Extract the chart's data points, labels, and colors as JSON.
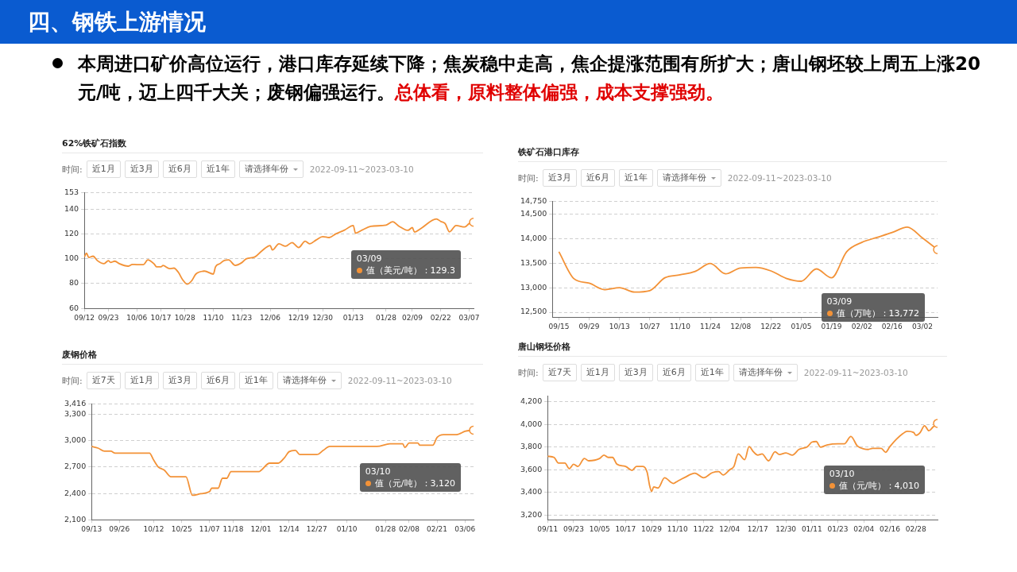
{
  "chart_data": [
    {
      "type": "other",
      "title": "四、钢铁上游情况",
      "annotations": [
        "本周进口矿价高位运行，港口库存延续下降；焦炭稳中走高，焦企提涨范围有所扩大；唐山钢坯较上周五上涨20元/吨，迈上四千大关；废钢偏强运行。",
        "总体看，原料整体偏强，成本支撑强劲。"
      ]
    },
    {
      "type": "line",
      "title": "62%铁矿石指数",
      "grid": "y",
      "x": [
        "2022-09-12",
        "2022-09-13",
        "2022-09-14",
        "2022-09-16",
        "2022-09-18",
        "2022-09-21",
        "2022-09-23",
        "2022-09-24",
        "2022-09-26",
        "2022-09-28",
        "2022-10-02",
        "2022-10-04",
        "2022-10-06",
        "2022-10-09",
        "2022-10-11",
        "2022-10-14",
        "2022-10-15",
        "2022-10-17",
        "2022-10-18",
        "2022-10-21",
        "2022-10-23",
        "2022-10-25",
        "2022-10-27",
        "2022-10-29",
        "2022-10-31",
        "2022-11-02",
        "2022-11-06",
        "2022-11-10",
        "2022-11-11",
        "2022-11-13",
        "2022-11-15",
        "2022-11-17",
        "2022-11-20",
        "2022-11-23",
        "2022-11-25",
        "2022-11-29",
        "2022-12-02",
        "2022-12-06",
        "2022-12-07",
        "2022-12-10",
        "2022-12-13",
        "2022-12-16",
        "2022-12-19",
        "2022-12-22",
        "2022-12-24",
        "2022-12-27",
        "2022-12-30",
        "2023-01-02",
        "2023-01-05",
        "2023-01-09",
        "2023-01-13",
        "2023-01-14",
        "2023-01-17",
        "2023-01-21",
        "2023-01-28",
        "2023-01-31",
        "2023-02-03",
        "2023-02-07",
        "2023-02-09",
        "2023-02-10",
        "2023-02-13",
        "2023-02-20",
        "2023-02-22",
        "2023-02-24",
        "2023-02-26",
        "2023-03-01",
        "2023-03-05",
        "2023-03-07",
        "2023-03-09"
      ],
      "series": [
        {
          "color": "#f39237",
          "values": [
            101.4,
            104.4,
            101,
            102,
            98.4,
            96,
            98.4,
            97,
            98,
            96,
            94,
            95.4,
            95.2,
            95.2,
            99,
            95.6,
            93.4,
            93.4,
            94.5,
            92,
            92.4,
            89,
            83,
            79.5,
            82,
            87.6,
            90,
            87.6,
            93.4,
            96,
            98.6,
            99,
            94.6,
            96.8,
            99.8,
            101.4,
            106,
            110.6,
            107,
            112,
            110,
            113,
            109,
            114,
            112,
            115,
            117.7,
            117,
            120,
            123,
            126.7,
            120.5,
            123,
            126,
            127,
            129.7,
            126,
            122.8,
            125,
            121.4,
            124.4,
            132,
            130,
            128.3,
            121.6,
            126.7,
            125.5,
            128.3,
            129.3
          ]
        }
      ],
      "xlim": [
        "2022-09-12",
        "2023-03-09"
      ],
      "xticks": [
        {
          "value": "2022-09-12",
          "label": "09/12"
        },
        {
          "value": "2022-09-23",
          "label": "09/23"
        },
        {
          "value": "2022-10-06",
          "label": "10/06"
        },
        {
          "value": "2022-10-17",
          "label": "10/17"
        },
        {
          "value": "2022-10-28",
          "label": "10/28"
        },
        {
          "value": "2022-11-10",
          "label": "11/10"
        },
        {
          "value": "2022-11-23",
          "label": "11/23"
        },
        {
          "value": "2022-12-06",
          "label": "12/06"
        },
        {
          "value": "2022-12-19",
          "label": "12/19"
        },
        {
          "value": "2022-12-30",
          "label": "12/30"
        },
        {
          "value": "2023-01-13",
          "label": "01/13"
        },
        {
          "value": "2023-01-28",
          "label": "01/28"
        },
        {
          "value": "2023-02-09",
          "label": "02/09"
        },
        {
          "value": "2023-02-22",
          "label": "02/22"
        },
        {
          "value": "2023-03-07",
          "label": "03/07"
        }
      ],
      "ylim": [
        60,
        153
      ],
      "yticks": [
        60,
        80,
        100,
        120,
        140,
        153
      ],
      "annotations": [
        "时间:",
        "近1月",
        "近3月",
        "近6月",
        "近1年",
        "请选择年份",
        "2022-09-11~2023-03-10",
        "03/09",
        "值（美元/吨）：129.3"
      ]
    },
    {
      "type": "line",
      "title": "铁矿石港口库存",
      "grid": "y",
      "x": [
        "2022-09-15",
        "2022-09-22",
        "2022-09-29",
        "2022-10-06",
        "2022-10-13",
        "2022-10-20",
        "2022-10-27",
        "2022-11-03",
        "2022-11-10",
        "2022-11-17",
        "2022-11-24",
        "2022-12-01",
        "2022-12-08",
        "2022-12-15",
        "2022-12-22",
        "2022-12-29",
        "2023-01-05",
        "2023-01-12",
        "2023-01-19",
        "2023-01-26",
        "2023-02-02",
        "2023-02-09",
        "2023-02-16",
        "2023-02-23",
        "2023-03-02",
        "2023-03-09"
      ],
      "series": [
        {
          "color": "#f39237",
          "values": [
            13730,
            13180,
            13090,
            12960,
            13000,
            12910,
            12940,
            13200,
            13260,
            13330,
            13490,
            13280,
            13400,
            13410,
            13340,
            13190,
            13130,
            13380,
            13200,
            13730,
            13920,
            14020,
            14120,
            14230,
            14010,
            13772
          ]
        }
      ],
      "xlim": [
        "2022-09-12",
        "2023-03-09"
      ],
      "xticks": [
        {
          "value": "2022-09-15",
          "label": "09/15"
        },
        {
          "value": "2022-09-29",
          "label": "09/29"
        },
        {
          "value": "2022-10-13",
          "label": "10/13"
        },
        {
          "value": "2022-10-27",
          "label": "10/27"
        },
        {
          "value": "2022-11-10",
          "label": "11/10"
        },
        {
          "value": "2022-11-24",
          "label": "11/24"
        },
        {
          "value": "2022-12-08",
          "label": "12/08"
        },
        {
          "value": "2022-12-22",
          "label": "12/22"
        },
        {
          "value": "2023-01-05",
          "label": "01/05"
        },
        {
          "value": "2023-01-19",
          "label": "01/19"
        },
        {
          "value": "2023-02-02",
          "label": "02/02"
        },
        {
          "value": "2023-02-16",
          "label": "02/16"
        },
        {
          "value": "2023-03-02",
          "label": "03/02"
        }
      ],
      "ylim": [
        12400,
        14750
      ],
      "yticks": [
        {
          "value": 12500,
          "label": "12,500"
        },
        {
          "value": 13000,
          "label": "13,000"
        },
        {
          "value": 13500,
          "label": "13,500"
        },
        {
          "value": 14000,
          "label": "14,000"
        },
        {
          "value": 14500,
          "label": "14,500"
        },
        {
          "value": 14750,
          "label": "14,750"
        }
      ],
      "annotations": [
        "时间:",
        "近3月",
        "近6月",
        "近1年",
        "请选择年份",
        "2022-09-11~2023-03-10",
        "03/09",
        "值（万吨）：13,772"
      ]
    },
    {
      "type": "line",
      "title": "废钢价格",
      "grid": "y",
      "x": [
        "2022-09-13",
        "2022-09-16",
        "2022-09-19",
        "2022-09-22",
        "2022-09-24",
        "2022-10-08",
        "2022-10-10",
        "2022-10-12",
        "2022-10-14",
        "2022-10-17",
        "2022-10-20",
        "2022-10-27",
        "2022-10-30",
        "2022-11-03",
        "2022-11-07",
        "2022-11-08",
        "2022-11-11",
        "2022-11-13",
        "2022-11-15",
        "2022-11-17",
        "2022-11-30",
        "2022-12-01",
        "2022-12-05",
        "2022-12-09",
        "2022-12-12",
        "2022-12-14",
        "2022-12-17",
        "2022-12-19",
        "2022-12-27",
        "2022-12-30",
        "2023-01-02",
        "2023-01-24",
        "2023-01-30",
        "2023-02-05",
        "2023-02-06",
        "2023-02-08",
        "2023-02-12",
        "2023-02-13",
        "2023-02-19",
        "2023-02-21",
        "2023-02-24",
        "2023-03-02",
        "2023-03-04",
        "2023-03-06",
        "2023-03-10"
      ],
      "series": [
        {
          "color": "#f39237",
          "values": [
            2935,
            2916,
            2880,
            2880,
            2858,
            2858,
            2858,
            2777,
            2703,
            2663,
            2589,
            2589,
            2378,
            2397,
            2420,
            2459,
            2459,
            2572,
            2572,
            2647,
            2647,
            2663,
            2744,
            2744,
            2809,
            2874,
            2890,
            2842,
            2842,
            2890,
            2935,
            2935,
            2964,
            2964,
            2922,
            2974,
            2974,
            2948,
            2948,
            3036,
            3068,
            3068,
            3084,
            3107,
            3120
          ]
        }
      ],
      "xlim": [
        "2022-09-13",
        "2023-03-10"
      ],
      "xticks": [
        {
          "value": "2022-09-13",
          "label": "09/13"
        },
        {
          "value": "2022-09-26",
          "label": "09/26"
        },
        {
          "value": "2022-10-12",
          "label": "10/12"
        },
        {
          "value": "2022-10-25",
          "label": "10/25"
        },
        {
          "value": "2022-11-07",
          "label": "11/07"
        },
        {
          "value": "2022-11-18",
          "label": "11/18"
        },
        {
          "value": "2022-12-01",
          "label": "12/01"
        },
        {
          "value": "2022-12-14",
          "label": "12/14"
        },
        {
          "value": "2022-12-27",
          "label": "12/27"
        },
        {
          "value": "2023-01-10",
          "label": "01/10"
        },
        {
          "value": "2023-01-28",
          "label": "01/28"
        },
        {
          "value": "2023-02-08",
          "label": "02/08"
        },
        {
          "value": "2023-02-21",
          "label": "02/21"
        },
        {
          "value": "2023-03-06",
          "label": "03/06"
        }
      ],
      "ylim": [
        2100,
        3416
      ],
      "yticks": [
        {
          "value": 2100,
          "label": "2,100"
        },
        {
          "value": 2400,
          "label": "2,400"
        },
        {
          "value": 2700,
          "label": "2,700"
        },
        {
          "value": 3000,
          "label": "3,000"
        },
        {
          "value": 3300,
          "label": "3,300"
        },
        {
          "value": 3416,
          "label": "3,416"
        }
      ],
      "annotations": [
        "时间:",
        "近7天",
        "近1月",
        "近3月",
        "近6月",
        "近1年",
        "请选择年份",
        "2022-09-11~2023-03-10",
        "03/10",
        "值（元/吨）：3,120"
      ]
    },
    {
      "type": "line",
      "title": "唐山钢坯价格",
      "grid": "y",
      "x": [
        "2022-09-11",
        "2022-09-14",
        "2022-09-16",
        "2022-09-19",
        "2022-09-21",
        "2022-09-23",
        "2022-09-25",
        "2022-09-28",
        "2022-09-30",
        "2022-10-05",
        "2022-10-07",
        "2022-10-09",
        "2022-10-11",
        "2022-10-13",
        "2022-10-17",
        "2022-10-20",
        "2022-10-22",
        "2022-10-25",
        "2022-10-27",
        "2022-10-28",
        "2022-10-29",
        "2022-10-30",
        "2022-11-01",
        "2022-11-04",
        "2022-11-08",
        "2022-11-10",
        "2022-11-13",
        "2022-11-18",
        "2022-11-22",
        "2022-11-26",
        "2022-11-29",
        "2022-12-01",
        "2022-12-04",
        "2022-12-06",
        "2022-12-08",
        "2022-12-11",
        "2022-12-13",
        "2022-12-15",
        "2022-12-17",
        "2022-12-19",
        "2022-12-22",
        "2022-12-25",
        "2022-12-27",
        "2022-12-30",
        "2023-01-02",
        "2023-01-05",
        "2023-01-09",
        "2023-01-11",
        "2023-01-13",
        "2023-01-15",
        "2023-01-18",
        "2023-01-23",
        "2023-01-26",
        "2023-01-29",
        "2023-02-01",
        "2023-02-04",
        "2023-02-06",
        "2023-02-08",
        "2023-02-12",
        "2023-02-14",
        "2023-02-16",
        "2023-02-19",
        "2023-02-22",
        "2023-02-24",
        "2023-02-27",
        "2023-02-28",
        "2023-03-02",
        "2023-03-04",
        "2023-03-06",
        "2023-03-08",
        "2023-03-10"
      ],
      "series": [
        {
          "color": "#f39237",
          "values": [
            3720,
            3710,
            3660,
            3660,
            3610,
            3650,
            3630,
            3700,
            3680,
            3700,
            3730,
            3710,
            3710,
            3650,
            3630,
            3595,
            3630,
            3630,
            3575,
            3470,
            3410,
            3450,
            3440,
            3530,
            3480,
            3500,
            3530,
            3570,
            3530,
            3575,
            3585,
            3555,
            3600,
            3630,
            3740,
            3690,
            3805,
            3760,
            3730,
            3740,
            3680,
            3760,
            3735,
            3750,
            3730,
            3780,
            3805,
            3845,
            3850,
            3800,
            3820,
            3830,
            3830,
            3895,
            3810,
            3785,
            3780,
            3790,
            3790,
            3755,
            3805,
            3870,
            3920,
            3940,
            3930,
            3905,
            3930,
            3990,
            3945,
            3980,
            4010
          ]
        }
      ],
      "xlim": [
        "2022-09-11",
        "2023-03-10"
      ],
      "xticks": [
        {
          "value": "2022-09-11",
          "label": "09/11"
        },
        {
          "value": "2022-09-23",
          "label": "09/23"
        },
        {
          "value": "2022-10-05",
          "label": "10/05"
        },
        {
          "value": "2022-10-17",
          "label": "10/17"
        },
        {
          "value": "2022-10-29",
          "label": "10/29"
        },
        {
          "value": "2022-11-10",
          "label": "11/10"
        },
        {
          "value": "2022-11-22",
          "label": "11/22"
        },
        {
          "value": "2022-12-04",
          "label": "12/04"
        },
        {
          "value": "2022-12-17",
          "label": "12/17"
        },
        {
          "value": "2022-12-30",
          "label": "12/30"
        },
        {
          "value": "2023-01-11",
          "label": "01/11"
        },
        {
          "value": "2023-01-23",
          "label": "01/23"
        },
        {
          "value": "2023-02-04",
          "label": "02/04"
        },
        {
          "value": "2023-02-16",
          "label": "02/16"
        },
        {
          "value": "2023-02-28",
          "label": "02/28"
        }
      ],
      "ylim": [
        3160,
        4250
      ],
      "yticks": [
        {
          "value": 3200,
          "label": "3,200"
        },
        {
          "value": 3400,
          "label": "3,400"
        },
        {
          "value": 3600,
          "label": "3,600"
        },
        {
          "value": 3800,
          "label": "3,800"
        },
        {
          "value": 4000,
          "label": "4,000"
        },
        {
          "value": 4200,
          "label": "4,200"
        }
      ],
      "annotations": [
        "时间:",
        "近7天",
        "近1月",
        "近3月",
        "近6月",
        "近1年",
        "请选择年份",
        "2022-09-11~2023-03-10",
        "03/10",
        "值（元/吨）：4,010"
      ]
    }
  ]
}
